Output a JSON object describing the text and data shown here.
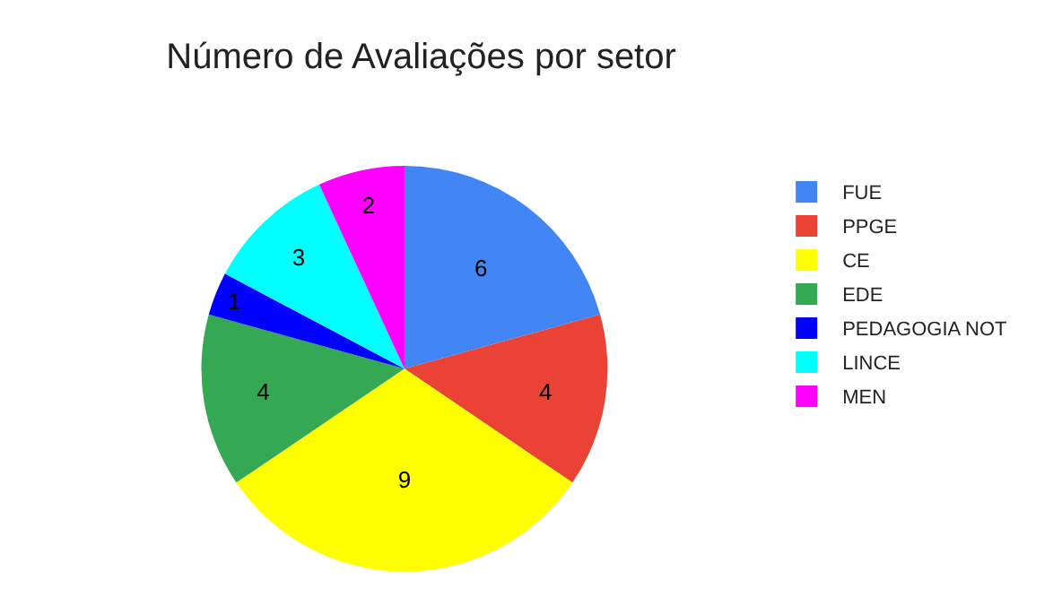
{
  "chart_data": {
    "type": "pie",
    "title": "Número de Avaliações por setor",
    "categories": [
      "FUE",
      "PPGE",
      "CE",
      "EDE",
      "PEDAGOGIA NOT",
      "LINCE",
      "MEN"
    ],
    "values": [
      6,
      4,
      9,
      4,
      1,
      3,
      2
    ],
    "colors": [
      "#4285f4",
      "#ea4335",
      "#ffff00",
      "#34a853",
      "#0000ff",
      "#00ffff",
      "#ff00ff"
    ],
    "data_labels": true,
    "legend": "right"
  }
}
